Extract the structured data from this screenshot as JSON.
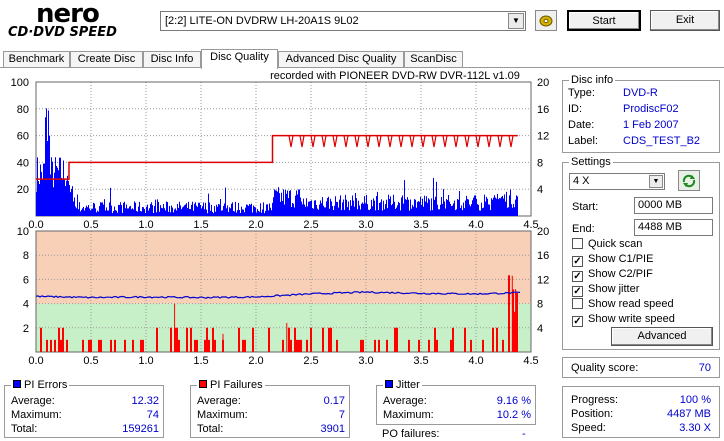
{
  "app": {
    "logo_top": "nero",
    "logo_bottom": "CD·DVD SPEED"
  },
  "drive": {
    "selected": "[2:2]  LITE-ON DVDRW LH-20A1S 9L02"
  },
  "buttons": {
    "start": "Start",
    "exit": "Exit",
    "advanced": "Advanced"
  },
  "tabs": [
    "Benchmark",
    "Create Disc",
    "Disc Info",
    "Disc Quality",
    "Advanced Disc Quality",
    "ScanDisc"
  ],
  "active_tab": 3,
  "chart_header": "recorded with PIONEER DVD-RW  DVR-112L v1.09",
  "disc_info": {
    "title": "Disc info",
    "type_label": "Type:",
    "type": "DVD-R",
    "id_label": "ID:",
    "id": "ProdiscF02",
    "date_label": "Date:",
    "date": "1 Feb 2007",
    "label_label": "Label:",
    "label": "CDS_TEST_B2"
  },
  "settings": {
    "title": "Settings",
    "speed": "4 X",
    "start_label": "Start:",
    "start": "0000 MB",
    "end_label": "End:",
    "end": "4488 MB",
    "quick_scan": "Quick scan",
    "show_c1": "Show C1/PIE",
    "show_c2": "Show C2/PIF",
    "show_jitter": "Show jitter",
    "show_read": "Show read speed",
    "show_write": "Show write speed",
    "checked": {
      "quick_scan": false,
      "show_c1": true,
      "show_c2": true,
      "show_jitter": true,
      "show_read": false,
      "show_write": true
    }
  },
  "quality": {
    "label": "Quality score:",
    "value": "70"
  },
  "progress": {
    "progress_label": "Progress:",
    "progress": "100 %",
    "position_label": "Position:",
    "position": "4487 MB",
    "speed_label": "Speed:",
    "speed": "3.30 X"
  },
  "pi_errors": {
    "title": "PI Errors",
    "color": "#0000ff",
    "avg_label": "Average:",
    "avg": "12.32",
    "max_label": "Maximum:",
    "max": "74",
    "total_label": "Total:",
    "total": "159261"
  },
  "pi_failures": {
    "title": "PI Failures",
    "color": "#ff0000",
    "avg_label": "Average:",
    "avg": "0.17",
    "max_label": "Maximum:",
    "max": "7",
    "total_label": "Total:",
    "total": "3901"
  },
  "jitter": {
    "title": "Jitter",
    "color": "#0000ff",
    "avg_label": "Average:",
    "avg": "9.16 %",
    "max_label": "Maximum:",
    "max": "10.2 %",
    "po_label": "PO failures:",
    "po": "-"
  },
  "chart_data": [
    {
      "type": "area",
      "x_ticks": [
        "0.0",
        "0.5",
        "1.0",
        "1.5",
        "2.0",
        "2.5",
        "3.0",
        "3.5",
        "4.0",
        "4.5"
      ],
      "y_left_ticks": [
        "100",
        "80",
        "60",
        "40",
        "20"
      ],
      "y_right_ticks": [
        "20",
        "16",
        "12",
        "8",
        "4"
      ],
      "xlim": [
        0,
        4.5
      ],
      "ylim_left": [
        0,
        100
      ],
      "ylim_right": [
        0,
        20
      ],
      "series": [
        {
          "role": "PI errors",
          "color": "#0000ff"
        },
        {
          "role": "write speed",
          "color": "#dd0000",
          "x": [
            0.0,
            0.3,
            0.3,
            2.15,
            2.15,
            4.38
          ],
          "y": [
            5.5,
            5.5,
            8,
            8,
            12,
            12
          ]
        }
      ]
    },
    {
      "type": "bar",
      "x_ticks": [
        "0.0",
        "0.5",
        "1.0",
        "1.5",
        "2.0",
        "2.5",
        "3.0",
        "3.5",
        "4.0",
        "4.5"
      ],
      "y_left_ticks": [
        "10",
        "8",
        "6",
        "4",
        "2"
      ],
      "y_right_ticks": [
        "20",
        "16",
        "12",
        "8",
        "4"
      ],
      "xlim": [
        0,
        4.5
      ],
      "ylim_left": [
        0,
        10
      ],
      "ylim_right": [
        0,
        20
      ],
      "series": [
        {
          "role": "PI failures",
          "color": "#ff0000"
        },
        {
          "role": "jitter",
          "color": "#0000cc",
          "x": [
            0.0,
            0.5,
            1.0,
            1.5,
            2.0,
            2.5,
            3.0,
            3.5,
            4.0,
            4.4
          ],
          "y": [
            9.2,
            9.0,
            9.1,
            9.0,
            9.1,
            9.6,
            9.9,
            9.7,
            9.6,
            9.8
          ]
        }
      ],
      "bands": [
        {
          "from": 0,
          "to": 4,
          "color": "#c8f0c8"
        },
        {
          "from": 4,
          "to": 10,
          "color": "#f8d0b8"
        }
      ]
    }
  ]
}
